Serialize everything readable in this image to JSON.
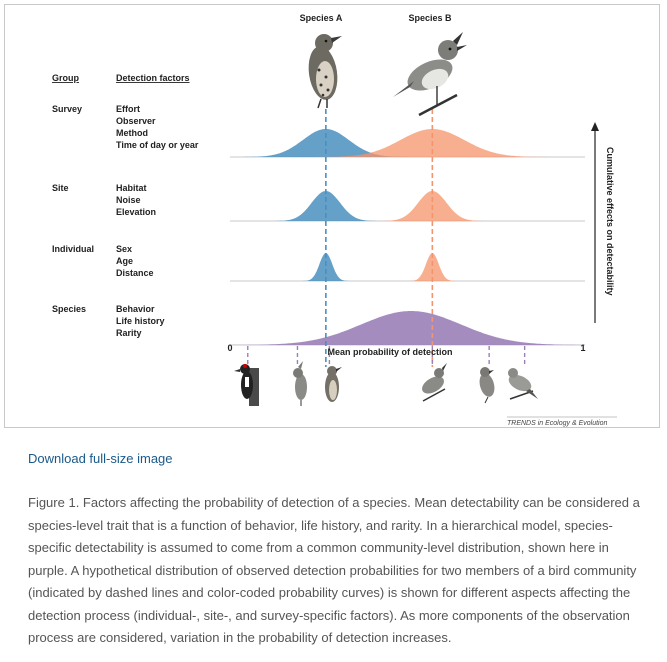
{
  "figure": {
    "species_a_label": "Species A",
    "species_b_label": "Species B",
    "group_header": "Group",
    "factors_header": "Detection factors",
    "groups": [
      {
        "name": "Survey",
        "factors": [
          "Effort",
          "Observer",
          "Method",
          "Time of day or year"
        ]
      },
      {
        "name": "Site",
        "factors": [
          "Habitat",
          "Noise",
          "Elevation"
        ]
      },
      {
        "name": "Individual",
        "factors": [
          "Sex",
          "Age",
          "Distance"
        ]
      },
      {
        "name": "Species",
        "factors": [
          "Behavior",
          "Life history",
          "Rarity"
        ]
      }
    ],
    "axis_label": "Mean probability of detection",
    "axis_min": "0",
    "axis_max": "1",
    "arrow_label": "Cumulative effects on detectability",
    "credit": "TRENDS in Ecology & Evolution",
    "colors": {
      "species_a": "#4a8fc0",
      "species_b": "#f5946a",
      "community": "#9b80b8"
    }
  },
  "chart_data": {
    "type": "area",
    "x_range": [
      0,
      1
    ],
    "xlabel": "Mean probability of detection",
    "species_a_mean": 0.27,
    "species_b_mean": 0.57,
    "community_mean": 0.51,
    "bird_positions": [
      0.05,
      0.19,
      0.28,
      0.57,
      0.73,
      0.83
    ],
    "rows": [
      {
        "group": "Survey",
        "species_a_sd": 0.065,
        "species_b_sd": 0.09
      },
      {
        "group": "Site",
        "species_a_sd": 0.04,
        "species_b_sd": 0.04
      },
      {
        "group": "Individual",
        "species_a_sd": 0.018,
        "species_b_sd": 0.018
      },
      {
        "group": "Species",
        "community_sd": 0.14
      }
    ]
  },
  "links": {
    "download": "Download full-size image"
  },
  "caption": "Figure 1. Factors affecting the probability of detection of a species. Mean detectability can be considered a species-level trait that is a function of behavior, life history, and rarity. In a hierarchical model, species-specific detectability is assumed to come from a common community-level distribution, shown here in purple. A hypothetical distribution of observed detection probabilities for two members of a bird community (indicated by dashed lines and color-coded probability curves) is shown for different aspects affecting the detection process (individual-, site-, and survey-specific factors). As more components of the observation process are considered, variation in the probability of detection increases."
}
